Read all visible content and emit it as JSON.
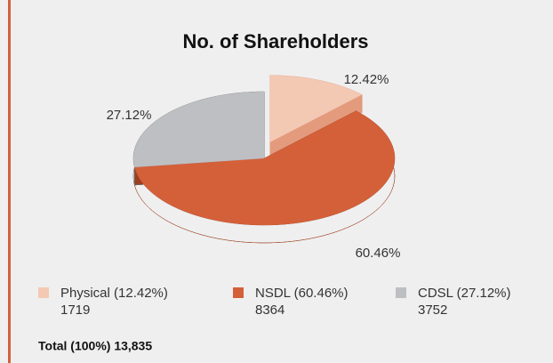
{
  "chart_data": {
    "type": "pie3d",
    "title": "No. of Shareholders",
    "categories": [
      "Physical (12.42%)",
      "NSDL (60.46%)",
      "CDSL (27.12%)"
    ],
    "values": [
      12.42,
      60.46,
      27.12
    ],
    "value_labels": [
      "12.42%",
      "60.46%",
      "27.12%"
    ],
    "counts": [
      1719,
      8364,
      3752
    ],
    "colors": [
      "#f3c9b3",
      "#d4603a",
      "#bebfc3"
    ],
    "side_colors": [
      "#e39a7d",
      "#9a4020",
      "#6e6e70"
    ],
    "total": "Total (100%) 13,835"
  }
}
